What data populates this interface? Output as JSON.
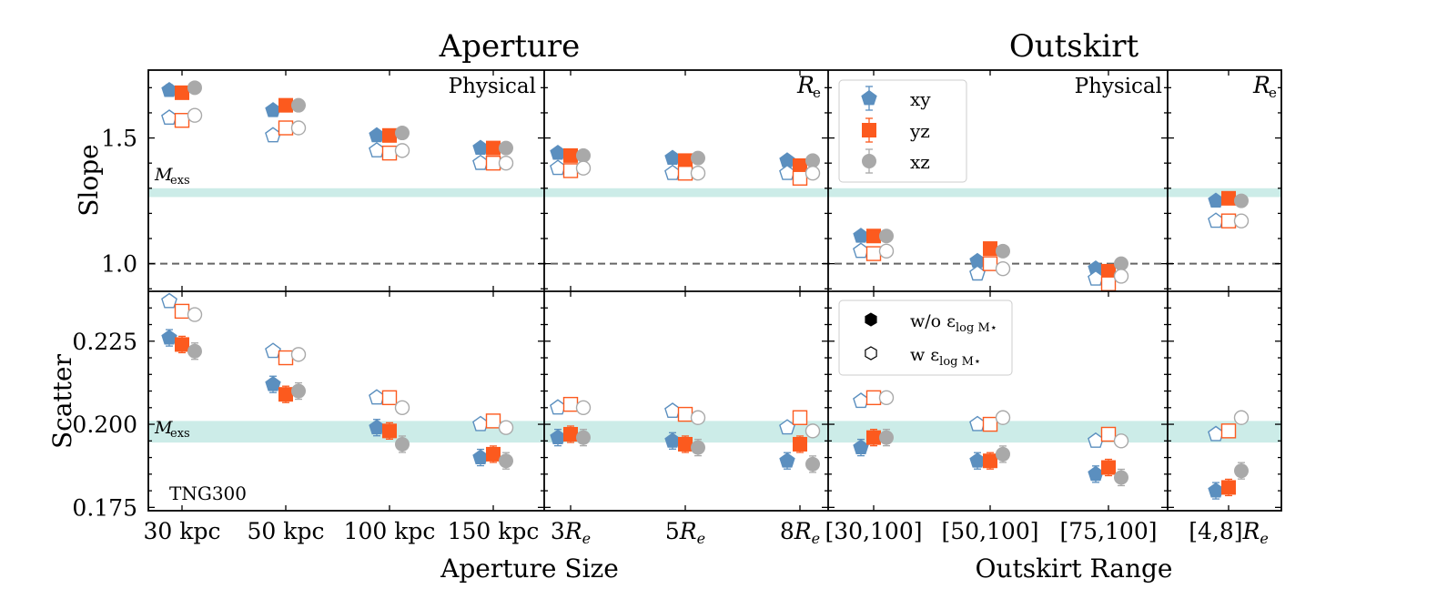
{
  "figure": {
    "group_titles": [
      "Aperture",
      "Outskirt"
    ],
    "row_labels": [
      "Slope",
      "Scatter"
    ],
    "bottom_labels": [
      "Aperture Size",
      "Outskirt Range"
    ],
    "ref_band_label": "M_exs",
    "simulation_label": "TNG300",
    "panel_labels": [
      "Physical",
      "R_e",
      "Physical",
      "R_e"
    ],
    "legend_projection": [
      "xy",
      "yz",
      "xz"
    ],
    "legend_error": [
      "w/o ε_log M⋆",
      "w ε_log M⋆"
    ],
    "colors": {
      "xy": "#5b8fbf",
      "yz": "#fc5a1e",
      "xz": "#a9a9a9",
      "band": "#ccece8"
    }
  },
  "chart_data": [
    {
      "type": "scatter",
      "panel": "Aperture / Physical",
      "categories": [
        "30 kpc",
        "50 kpc",
        "100 kpc",
        "150 kpc"
      ],
      "slope": {
        "ylim": [
          0.89,
          1.77
        ],
        "ref_line": 1.0,
        "mexs_band": [
          1.265,
          1.3
        ],
        "series": [
          {
            "name": "xy",
            "without_err": [
              1.69,
              1.61,
              1.51,
              1.46
            ],
            "with_err": [
              1.58,
              1.51,
              1.45,
              1.4
            ]
          },
          {
            "name": "yz",
            "without_err": [
              1.68,
              1.63,
              1.51,
              1.46
            ],
            "with_err": [
              1.57,
              1.54,
              1.44,
              1.4
            ]
          },
          {
            "name": "xz",
            "without_err": [
              1.7,
              1.63,
              1.52,
              1.46
            ],
            "with_err": [
              1.59,
              1.54,
              1.45,
              1.4
            ]
          }
        ]
      },
      "scatter": {
        "ylim": [
          0.174,
          0.24
        ],
        "mexs_band": [
          0.1945,
          0.201
        ],
        "series": [
          {
            "name": "xy",
            "without_err": [
              0.226,
              0.212,
              0.199,
              0.19
            ],
            "with_err": [
              0.237,
              0.222,
              0.208,
              0.2
            ]
          },
          {
            "name": "yz",
            "without_err": [
              0.224,
              0.209,
              0.198,
              0.191
            ],
            "with_err": [
              0.234,
              0.22,
              0.208,
              0.201
            ]
          },
          {
            "name": "xz",
            "without_err": [
              0.222,
              0.21,
              0.194,
              0.189
            ],
            "with_err": [
              0.233,
              0.221,
              0.205,
              0.199
            ]
          }
        ]
      }
    },
    {
      "type": "scatter",
      "panel": "Aperture / R_e",
      "categories": [
        "3R_e",
        "5R_e",
        "8R_e"
      ],
      "slope": {
        "series": [
          {
            "name": "xy",
            "without_err": [
              1.44,
              1.42,
              1.41
            ],
            "with_err": [
              1.38,
              1.36,
              1.36
            ]
          },
          {
            "name": "yz",
            "without_err": [
              1.43,
              1.41,
              1.39
            ],
            "with_err": [
              1.37,
              1.36,
              1.34
            ]
          },
          {
            "name": "xz",
            "without_err": [
              1.43,
              1.42,
              1.41
            ],
            "with_err": [
              1.38,
              1.36,
              1.36
            ]
          }
        ]
      },
      "scatter": {
        "series": [
          {
            "name": "xy",
            "without_err": [
              0.196,
              0.195,
              0.189
            ],
            "with_err": [
              0.205,
              0.204,
              0.199
            ]
          },
          {
            "name": "yz",
            "without_err": [
              0.197,
              0.194,
              0.194
            ],
            "with_err": [
              0.206,
              0.203,
              0.202
            ]
          },
          {
            "name": "xz",
            "without_err": [
              0.196,
              0.193,
              0.188
            ],
            "with_err": [
              0.205,
              0.202,
              0.198
            ]
          }
        ]
      }
    },
    {
      "type": "scatter",
      "panel": "Outskirt / Physical",
      "categories": [
        "[30, 100]",
        "[50, 100]",
        "[75, 100]"
      ],
      "slope": {
        "series": [
          {
            "name": "xy",
            "without_err": [
              1.11,
              1.01,
              0.98
            ],
            "with_err": [
              1.05,
              0.96,
              0.94
            ]
          },
          {
            "name": "yz",
            "without_err": [
              1.11,
              1.06,
              0.97
            ],
            "with_err": [
              1.04,
              1.0,
              0.92
            ]
          },
          {
            "name": "xz",
            "without_err": [
              1.11,
              1.05,
              1.0
            ],
            "with_err": [
              1.05,
              0.98,
              0.95
            ]
          }
        ]
      },
      "scatter": {
        "series": [
          {
            "name": "xy",
            "without_err": [
              0.193,
              0.189,
              0.185
            ],
            "with_err": [
              0.207,
              0.2,
              0.195
            ]
          },
          {
            "name": "yz",
            "without_err": [
              0.196,
              0.189,
              0.187
            ],
            "with_err": [
              0.208,
              0.2,
              0.197
            ]
          },
          {
            "name": "xz",
            "without_err": [
              0.196,
              0.191,
              0.184
            ],
            "with_err": [
              0.208,
              0.202,
              0.195
            ]
          }
        ]
      }
    },
    {
      "type": "scatter",
      "panel": "Outskirt / R_e",
      "categories": [
        "[4, 8]R_e"
      ],
      "slope": {
        "series": [
          {
            "name": "xy",
            "without_err": [
              1.25
            ],
            "with_err": [
              1.17
            ]
          },
          {
            "name": "yz",
            "without_err": [
              1.26
            ],
            "with_err": [
              1.17
            ]
          },
          {
            "name": "xz",
            "without_err": [
              1.25
            ],
            "with_err": [
              1.17
            ]
          }
        ]
      },
      "scatter": {
        "series": [
          {
            "name": "xy",
            "without_err": [
              0.18
            ],
            "with_err": [
              0.197
            ]
          },
          {
            "name": "yz",
            "without_err": [
              0.181
            ],
            "with_err": [
              0.198
            ]
          },
          {
            "name": "xz",
            "without_err": [
              0.186
            ],
            "with_err": [
              0.202
            ]
          }
        ]
      }
    }
  ]
}
